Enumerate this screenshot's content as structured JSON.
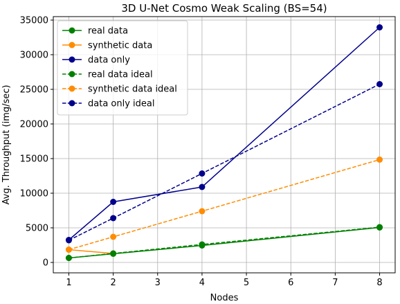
{
  "chart_data": {
    "type": "line",
    "title": "3D U-Net Cosmo Weak Scaling (BS=54)",
    "xlabel": "Nodes",
    "ylabel": "Avg. Throughput (img/sec)",
    "xlim": [
      0.65,
      8.35
    ],
    "ylim": [
      -1500,
      35500
    ],
    "xticks": [
      1,
      2,
      3,
      4,
      5,
      6,
      7,
      8
    ],
    "yticks": [
      0,
      5000,
      10000,
      15000,
      20000,
      25000,
      30000,
      35000
    ],
    "grid": true,
    "legend_position": "upper-left",
    "series": [
      {
        "name": "real data",
        "color": "#008000",
        "dashed": false,
        "x": [
          1,
          2,
          4,
          8
        ],
        "y": [
          650,
          1250,
          2450,
          5050
        ]
      },
      {
        "name": "synthetic data",
        "color": "#ff8c00",
        "dashed": false,
        "x": [
          1,
          2
        ],
        "y": [
          1850,
          1300
        ]
      },
      {
        "name": "data only",
        "color": "#00008b",
        "dashed": false,
        "x": [
          1,
          2,
          4,
          8
        ],
        "y": [
          3250,
          8750,
          10900,
          33950
        ]
      },
      {
        "name": "real data ideal",
        "color": "#008000",
        "dashed": true,
        "x": [
          1,
          2,
          4,
          8
        ],
        "y": [
          650,
          1300,
          2600,
          5100
        ]
      },
      {
        "name": "synthetic data ideal",
        "color": "#ff8c00",
        "dashed": true,
        "x": [
          1,
          2,
          4,
          8
        ],
        "y": [
          1850,
          3700,
          7400,
          14850
        ]
      },
      {
        "name": "data only ideal",
        "color": "#00008b",
        "dashed": true,
        "x": [
          1,
          2,
          4,
          8
        ],
        "y": [
          3200,
          6400,
          12850,
          25750
        ]
      }
    ]
  }
}
